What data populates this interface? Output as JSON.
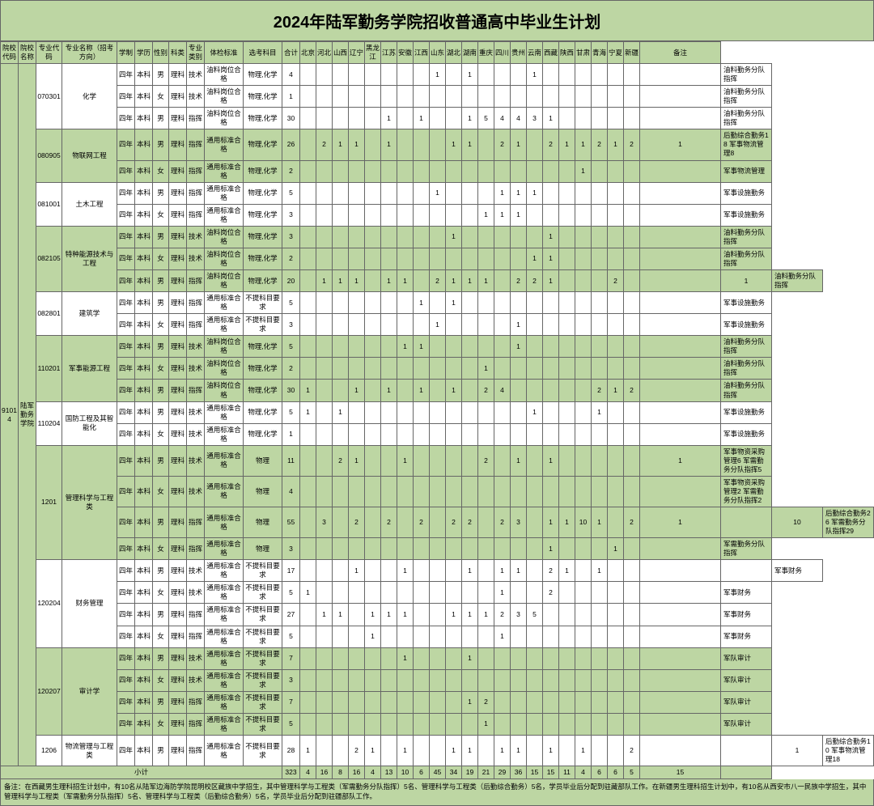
{
  "title": "2024年陆军勤务学院招收普通高中毕业生计划",
  "headers": [
    "院校代码",
    "院校名称",
    "专业代码",
    "专业名称（招考方向）",
    "学制",
    "学历",
    "性别",
    "科类",
    "专业类别",
    "体检标准",
    "选考科目",
    "合计",
    "北京",
    "河北",
    "山西",
    "辽宁",
    "黑龙江",
    "江苏",
    "安徽",
    "江西",
    "山东",
    "湖北",
    "湖南",
    "重庆",
    "四川",
    "贵州",
    "云南",
    "西藏",
    "陕西",
    "甘肃",
    "青海",
    "宁夏",
    "新疆",
    "备注"
  ],
  "schoolCode": "91014",
  "schoolName": "陆军勤务学院",
  "xiaoji": "小计",
  "totals": [
    "323",
    "4",
    "16",
    "8",
    "16",
    "4",
    "13",
    "10",
    "6",
    "45",
    "34",
    "19",
    "21",
    "29",
    "36",
    "15",
    "15",
    "11",
    "4",
    "6",
    "6",
    "5",
    "15"
  ],
  "footnote": "备注：在西藏男生理科招生计划中，有10名从陆军边海防学院昆明校区藏族中学招生，其中管理科学与工程类（军需勤务分队指挥）5名、管理科学与工程类（后勤综合勤务）5名，学员毕业后分配到驻藏部队工作。在新疆男生理科招生计划中，有10名从西安市八一民族中学招生，其中管理科学与工程类（军需勤务分队指挥）5名、管理科学与工程类（后勤综合勤务）5名，学员毕业后分配到驻疆部队工作。",
  "majors": [
    {
      "code": "070301",
      "name": "化学",
      "bg": "white",
      "rows": [
        {
          "cells": [
            "四年",
            "本科",
            "男",
            "理科",
            "技术",
            "油料岗位合格",
            "物理,化学",
            "4",
            "",
            "",
            "",
            "",
            "",
            "",
            "",
            "",
            "1",
            "",
            "1",
            "",
            "",
            "",
            "1",
            "",
            "",
            "",
            "",
            "",
            ""
          ],
          "remark": "油料勤务分队指挥"
        },
        {
          "cells": [
            "四年",
            "本科",
            "女",
            "理科",
            "技术",
            "油料岗位合格",
            "物理,化学",
            "1",
            "",
            "",
            "",
            "",
            "",
            "",
            "",
            "",
            "",
            "",
            "",
            "",
            "",
            "",
            "",
            "",
            "",
            "",
            "",
            "",
            ""
          ],
          "remark": "油料勤务分队指挥"
        },
        {
          "cells": [
            "四年",
            "本科",
            "男",
            "理科",
            "指挥",
            "油料岗位合格",
            "物理,化学",
            "30",
            "",
            "",
            "",
            "",
            "",
            "1",
            "",
            "1",
            "",
            "",
            "1",
            "5",
            "4",
            "4",
            "3",
            "1",
            "",
            "",
            "",
            "",
            ""
          ],
          "remark": "油料勤务分队指挥"
        }
      ]
    },
    {
      "code": "080905",
      "name": "物联网工程",
      "bg": "green",
      "rows": [
        {
          "cells": [
            "四年",
            "本科",
            "男",
            "理科",
            "指挥",
            "通用标准合格",
            "物理,化学",
            "26",
            "",
            "2",
            "1",
            "1",
            "",
            "1",
            "",
            "",
            "",
            "1",
            "1",
            "",
            "2",
            "1",
            "",
            "2",
            "1",
            "1",
            "2",
            "1",
            "2",
            "1"
          ],
          "remark": "后勤综合勤务18 军事物流管理8"
        },
        {
          "cells": [
            "四年",
            "本科",
            "女",
            "理科",
            "指挥",
            "通用标准合格",
            "物理,化学",
            "2",
            "",
            "",
            "",
            "",
            "",
            "",
            "",
            "",
            "",
            "",
            "",
            "",
            "",
            "",
            "",
            "",
            "",
            "1",
            "",
            "",
            ""
          ],
          "remark": "军事物流管理"
        }
      ]
    },
    {
      "code": "081001",
      "name": "土木工程",
      "bg": "white",
      "rows": [
        {
          "cells": [
            "四年",
            "本科",
            "男",
            "理科",
            "指挥",
            "通用标准合格",
            "物理,化学",
            "5",
            "",
            "",
            "",
            "",
            "",
            "",
            "",
            "",
            "1",
            "",
            "",
            "",
            "1",
            "1",
            "1",
            "",
            "",
            "",
            "",
            "",
            ""
          ],
          "remark": "军事设施勤务"
        },
        {
          "cells": [
            "四年",
            "本科",
            "女",
            "理科",
            "指挥",
            "通用标准合格",
            "物理,化学",
            "3",
            "",
            "",
            "",
            "",
            "",
            "",
            "",
            "",
            "",
            "",
            "",
            "1",
            "1",
            "1",
            "",
            "",
            "",
            "",
            "",
            "",
            ""
          ],
          "remark": "军事设施勤务"
        }
      ]
    },
    {
      "code": "082105",
      "name": "特种能源技术与工程",
      "bg": "green",
      "rows": [
        {
          "cells": [
            "四年",
            "本科",
            "男",
            "理科",
            "技术",
            "油料岗位合格",
            "物理,化学",
            "3",
            "",
            "",
            "",
            "",
            "",
            "",
            "",
            "",
            "",
            "1",
            "",
            "",
            "",
            "",
            "",
            "1",
            "",
            "",
            "",
            "",
            ""
          ],
          "remark": "油料勤务分队指挥"
        },
        {
          "cells": [
            "四年",
            "本科",
            "女",
            "理科",
            "技术",
            "油料岗位合格",
            "物理,化学",
            "2",
            "",
            "",
            "",
            "",
            "",
            "",
            "",
            "",
            "",
            "",
            "",
            "",
            "",
            "",
            "1",
            "1",
            "",
            "",
            "",
            "",
            ""
          ],
          "remark": "油料勤务分队指挥"
        },
        {
          "cells": [
            "四年",
            "本科",
            "男",
            "理科",
            "指挥",
            "油料岗位合格",
            "物理,化学",
            "20",
            "",
            "1",
            "1",
            "1",
            "",
            "1",
            "1",
            "",
            "2",
            "1",
            "1",
            "1",
            "",
            "2",
            "2",
            "1",
            "",
            "",
            "",
            "2",
            "",
            "",
            "1"
          ],
          "remark": "油料勤务分队指挥"
        }
      ]
    },
    {
      "code": "082801",
      "name": "建筑学",
      "bg": "white",
      "rows": [
        {
          "cells": [
            "四年",
            "本科",
            "男",
            "理科",
            "指挥",
            "通用标准合格",
            "不提科目要求",
            "5",
            "",
            "",
            "",
            "",
            "",
            "",
            "",
            "1",
            "",
            "1",
            "",
            "",
            "",
            "",
            "",
            "",
            "",
            "",
            "",
            "",
            ""
          ],
          "remark": "军事设施勤务"
        },
        {
          "cells": [
            "四年",
            "本科",
            "女",
            "理科",
            "指挥",
            "通用标准合格",
            "不提科目要求",
            "3",
            "",
            "",
            "",
            "",
            "",
            "",
            "",
            "",
            "1",
            "",
            "",
            "",
            "",
            "1",
            "",
            "",
            "",
            "",
            "",
            "",
            ""
          ],
          "remark": "军事设施勤务"
        }
      ]
    },
    {
      "code": "110201",
      "name": "军事能源工程",
      "bg": "green",
      "rows": [
        {
          "cells": [
            "四年",
            "本科",
            "男",
            "理科",
            "技术",
            "油料岗位合格",
            "物理,化学",
            "5",
            "",
            "",
            "",
            "",
            "",
            "",
            "1",
            "1",
            "",
            "",
            "",
            "",
            "",
            "1",
            "",
            "",
            "",
            "",
            "",
            "",
            ""
          ],
          "remark": "油料勤务分队指挥"
        },
        {
          "cells": [
            "四年",
            "本科",
            "女",
            "理科",
            "技术",
            "油料岗位合格",
            "物理,化学",
            "2",
            "",
            "",
            "",
            "",
            "",
            "",
            "",
            "",
            "",
            "",
            "",
            "1",
            "",
            "",
            "",
            "",
            "",
            "",
            "",
            "",
            ""
          ],
          "remark": "油料勤务分队指挥"
        },
        {
          "cells": [
            "四年",
            "本科",
            "男",
            "理科",
            "指挥",
            "油料岗位合格",
            "物理,化学",
            "30",
            "1",
            "",
            "",
            "1",
            "",
            "1",
            "",
            "1",
            "",
            "1",
            "",
            "2",
            "4",
            "",
            "",
            "",
            "",
            "",
            "2",
            "1",
            "2",
            ""
          ],
          "remark": "油料勤务分队指挥"
        }
      ]
    },
    {
      "code": "110204",
      "name": "国防工程及其智能化",
      "bg": "white",
      "rows": [
        {
          "cells": [
            "四年",
            "本科",
            "男",
            "理科",
            "技术",
            "通用标准合格",
            "物理,化学",
            "5",
            "1",
            "",
            "1",
            "",
            "",
            "",
            "",
            "",
            "",
            "",
            "",
            "",
            "",
            "",
            "1",
            "",
            "",
            "",
            "1",
            "",
            "",
            ""
          ],
          "remark": "军事设施勤务"
        },
        {
          "cells": [
            "四年",
            "本科",
            "女",
            "理科",
            "技术",
            "通用标准合格",
            "物理,化学",
            "1",
            "",
            "",
            "",
            "",
            "",
            "",
            "",
            "",
            "",
            "",
            "",
            "",
            "",
            "",
            "",
            "",
            "",
            "",
            "",
            "",
            ""
          ],
          "remark": "军事设施勤务"
        }
      ]
    },
    {
      "code": "1201",
      "name": "管理科学与工程类",
      "bg": "green",
      "rows": [
        {
          "cells": [
            "四年",
            "本科",
            "男",
            "理科",
            "技术",
            "通用标准合格",
            "物理",
            "11",
            "",
            "",
            "2",
            "1",
            "",
            "",
            "1",
            "",
            "",
            "",
            "",
            "2",
            "",
            "1",
            "",
            "1",
            "",
            "",
            "",
            "",
            "",
            "1"
          ],
          "remark": "军事物资采购管理6 军需勤务分队指挥5"
        },
        {
          "cells": [
            "四年",
            "本科",
            "女",
            "理科",
            "技术",
            "通用标准合格",
            "物理",
            "4",
            "",
            "",
            "",
            "",
            "",
            "",
            "",
            "",
            "",
            "",
            "",
            "",
            "",
            "",
            "",
            "",
            "",
            "",
            "",
            "",
            ""
          ],
          "remark": "军事物资采购管理2 军需勤务分队指挥2"
        },
        {
          "cells": [
            "四年",
            "本科",
            "男",
            "理科",
            "指挥",
            "通用标准合格",
            "物理",
            "55",
            "",
            "3",
            "",
            "2",
            "",
            "2",
            "",
            "2",
            "",
            "2",
            "2",
            "",
            "2",
            "3",
            "",
            "1",
            "1",
            "10",
            "1",
            "",
            "2",
            "1",
            "",
            "10"
          ],
          "remark": "后勤综合勤务26 军需勤务分队指挥29"
        },
        {
          "cells": [
            "四年",
            "本科",
            "女",
            "理科",
            "指挥",
            "通用标准合格",
            "物理",
            "3",
            "",
            "",
            "",
            "",
            "",
            "",
            "",
            "",
            "",
            "",
            "",
            "",
            "",
            "",
            "",
            "1",
            "",
            "",
            "",
            "1",
            "",
            ""
          ],
          "remark": "军需勤务分队指挥"
        }
      ]
    },
    {
      "code": "120204",
      "name": "财务管理",
      "bg": "white",
      "rows": [
        {
          "cells": [
            "四年",
            "本科",
            "男",
            "理科",
            "技术",
            "通用标准合格",
            "不提科目要求",
            "17",
            "",
            "",
            "",
            "1",
            "",
            "",
            "1",
            "",
            "",
            "",
            "1",
            "",
            "1",
            "1",
            "",
            "2",
            "1",
            "",
            "1",
            "",
            "",
            "",
            ""
          ],
          "remark": "军事财务"
        },
        {
          "cells": [
            "四年",
            "本科",
            "女",
            "理科",
            "技术",
            "通用标准合格",
            "不提科目要求",
            "5",
            "1",
            "",
            "",
            "",
            "",
            "",
            "",
            "",
            "",
            "",
            "",
            "",
            "1",
            "",
            "",
            "2",
            "",
            "",
            "",
            "",
            "",
            ""
          ],
          "remark": "军事财务"
        },
        {
          "cells": [
            "四年",
            "本科",
            "男",
            "理科",
            "指挥",
            "通用标准合格",
            "不提科目要求",
            "27",
            "",
            "1",
            "1",
            "",
            "1",
            "1",
            "1",
            "",
            "",
            "1",
            "1",
            "1",
            "2",
            "3",
            "5",
            "",
            "",
            "",
            "",
            "",
            "",
            ""
          ],
          "remark": "军事财务"
        },
        {
          "cells": [
            "四年",
            "本科",
            "女",
            "理科",
            "指挥",
            "通用标准合格",
            "不提科目要求",
            "5",
            "",
            "",
            "",
            "",
            "1",
            "",
            "",
            "",
            "",
            "",
            "",
            "",
            "1",
            "",
            "",
            "",
            "",
            "",
            "",
            "",
            "",
            ""
          ],
          "remark": "军事财务"
        }
      ]
    },
    {
      "code": "120207",
      "name": "审计学",
      "bg": "green",
      "rows": [
        {
          "cells": [
            "四年",
            "本科",
            "男",
            "理科",
            "技术",
            "通用标准合格",
            "不提科目要求",
            "7",
            "",
            "",
            "",
            "",
            "",
            "",
            "1",
            "",
            "",
            "",
            "1",
            "",
            "",
            "",
            "",
            "",
            "",
            "",
            "",
            "",
            ""
          ],
          "remark": "军队审计"
        },
        {
          "cells": [
            "四年",
            "本科",
            "女",
            "理科",
            "技术",
            "通用标准合格",
            "不提科目要求",
            "3",
            "",
            "",
            "",
            "",
            "",
            "",
            "",
            "",
            "",
            "",
            "",
            "",
            "",
            "",
            "",
            "",
            "",
            "",
            "",
            "",
            ""
          ],
          "remark": "军队审计"
        },
        {
          "cells": [
            "四年",
            "本科",
            "男",
            "理科",
            "指挥",
            "通用标准合格",
            "不提科目要求",
            "7",
            "",
            "",
            "",
            "",
            "",
            "",
            "",
            "",
            "",
            "",
            "1",
            "2",
            "",
            "",
            "",
            "",
            "",
            "",
            "",
            "",
            ""
          ],
          "remark": "军队审计"
        },
        {
          "cells": [
            "四年",
            "本科",
            "女",
            "理科",
            "指挥",
            "通用标准合格",
            "不提科目要求",
            "5",
            "",
            "",
            "",
            "",
            "",
            "",
            "",
            "",
            "",
            "",
            "",
            "1",
            "",
            "",
            "",
            "",
            "",
            "",
            "",
            "",
            ""
          ],
          "remark": "军队审计"
        }
      ]
    },
    {
      "code": "1206",
      "name": "物流管理与工程类",
      "bg": "white",
      "rows": [
        {
          "cells": [
            "四年",
            "本科",
            "男",
            "理科",
            "指挥",
            "通用标准合格",
            "不提科目要求",
            "28",
            "1",
            "",
            "",
            "2",
            "1",
            "",
            "1",
            "",
            "",
            "1",
            "1",
            "",
            "1",
            "1",
            "",
            "1",
            "",
            "1",
            "",
            "",
            "2",
            "",
            "",
            "1"
          ],
          "remark": "后勤综合勤务10 军事物流管理18"
        }
      ]
    }
  ]
}
